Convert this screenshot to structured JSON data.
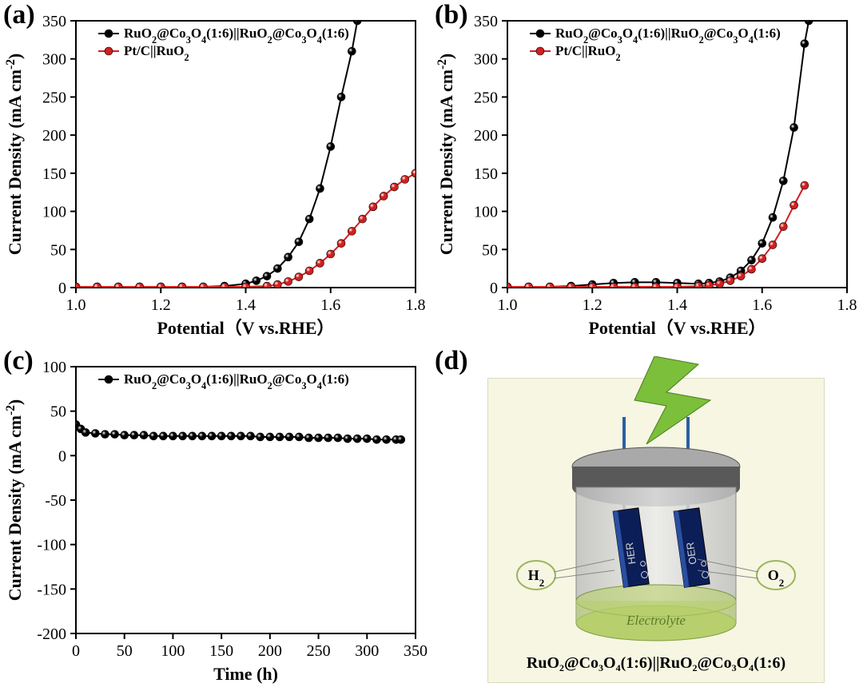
{
  "global": {
    "background_color": "#ffffff",
    "font_family": "Times New Roman",
    "panel_label_fontsize": 34
  },
  "panel_a": {
    "label": "(a)",
    "type": "line-scatter",
    "xlabel": "Potential（V vs.RHE）",
    "ylabel": "Current Density (mA cm⁻²)",
    "label_fontsize": 22,
    "tick_fontsize": 20,
    "xlim": [
      1.0,
      1.8
    ],
    "xtick_step": 0.2,
    "ylim": [
      0,
      350
    ],
    "ytick_step": 50,
    "axis_color": "#000000",
    "background_color": "#ffffff",
    "legend_position": "top-inside",
    "series": [
      {
        "name": "RuO₂@Co₃O₄(1:6)||RuO₂@Co₃O₄(1:6)",
        "line_color": "#000000",
        "marker_fill": "#000000",
        "marker_edge": "#000000",
        "marker_style": "circle",
        "marker_size": 5,
        "x": [
          1.0,
          1.05,
          1.1,
          1.15,
          1.2,
          1.25,
          1.3,
          1.35,
          1.4,
          1.425,
          1.45,
          1.475,
          1.5,
          1.525,
          1.55,
          1.575,
          1.6,
          1.625,
          1.65,
          1.663
        ],
        "y": [
          1,
          1,
          1,
          1,
          1,
          1,
          1,
          2,
          5,
          9,
          15,
          25,
          40,
          60,
          90,
          130,
          185,
          250,
          310,
          350
        ]
      },
      {
        "name": "Pt/C||RuO₂",
        "line_color": "#d21f1f",
        "marker_fill": "#d21f1f",
        "marker_edge": "#000000",
        "marker_style": "circle",
        "marker_size": 5,
        "x": [
          1.0,
          1.05,
          1.1,
          1.15,
          1.2,
          1.25,
          1.3,
          1.35,
          1.4,
          1.45,
          1.475,
          1.5,
          1.525,
          1.55,
          1.575,
          1.6,
          1.625,
          1.65,
          1.675,
          1.7,
          1.725,
          1.75,
          1.775,
          1.8
        ],
        "y": [
          1,
          1,
          1,
          1,
          1,
          1,
          1,
          1,
          1,
          2,
          4,
          8,
          14,
          22,
          32,
          44,
          58,
          74,
          90,
          106,
          120,
          132,
          142,
          150
        ]
      }
    ]
  },
  "panel_b": {
    "label": "(b)",
    "type": "line-scatter",
    "xlabel": "Potential（V vs.RHE）",
    "ylabel": "Current Density (mA cm⁻²)",
    "label_fontsize": 22,
    "tick_fontsize": 20,
    "xlim": [
      1.0,
      1.8
    ],
    "xtick_step": 0.2,
    "ylim": [
      0,
      350
    ],
    "ytick_step": 50,
    "axis_color": "#000000",
    "background_color": "#ffffff",
    "legend_position": "top-inside",
    "series": [
      {
        "name": "RuO₂@Co₃O₄(1:6)||RuO₂@Co₃O₄(1:6)",
        "line_color": "#000000",
        "marker_fill": "#000000",
        "marker_edge": "#000000",
        "marker_style": "circle",
        "marker_size": 5,
        "x": [
          1.0,
          1.05,
          1.1,
          1.15,
          1.2,
          1.25,
          1.3,
          1.35,
          1.4,
          1.45,
          1.475,
          1.5,
          1.525,
          1.55,
          1.575,
          1.6,
          1.625,
          1.65,
          1.675,
          1.7,
          1.71
        ],
        "y": [
          1,
          1,
          1,
          2,
          4,
          6,
          7,
          7,
          6,
          5,
          6,
          8,
          13,
          22,
          36,
          58,
          92,
          140,
          210,
          320,
          350
        ]
      },
      {
        "name": "Pt/C||RuO₂",
        "line_color": "#d21f1f",
        "marker_fill": "#d21f1f",
        "marker_edge": "#000000",
        "marker_style": "circle",
        "marker_size": 5,
        "x": [
          1.0,
          1.05,
          1.1,
          1.15,
          1.2,
          1.25,
          1.3,
          1.35,
          1.4,
          1.45,
          1.475,
          1.5,
          1.525,
          1.55,
          1.575,
          1.6,
          1.625,
          1.65,
          1.675,
          1.7
        ],
        "y": [
          1,
          1,
          1,
          1,
          1,
          1,
          1,
          1,
          1,
          2,
          3,
          5,
          9,
          15,
          24,
          38,
          56,
          80,
          108,
          134
        ]
      }
    ]
  },
  "panel_c": {
    "label": "(c)",
    "type": "line-scatter",
    "xlabel": "Time (h)",
    "ylabel": "Current Density (mA cm⁻²)",
    "label_fontsize": 22,
    "tick_fontsize": 20,
    "xlim": [
      0,
      350
    ],
    "xtick_step": 50,
    "ylim": [
      -200,
      100
    ],
    "ytick_step": 50,
    "axis_color": "#000000",
    "background_color": "#ffffff",
    "legend_position": "top-inside",
    "series": [
      {
        "name": "RuO₂@Co₃O₄(1:6)||RuO₂@Co₃O₄(1:6)",
        "line_color": "#000000",
        "marker_fill": "#000000",
        "marker_edge": "#000000",
        "marker_style": "circle",
        "marker_size": 5,
        "x": [
          0,
          5,
          10,
          20,
          30,
          40,
          50,
          60,
          70,
          80,
          90,
          100,
          110,
          120,
          130,
          140,
          150,
          160,
          170,
          180,
          190,
          200,
          210,
          220,
          230,
          240,
          250,
          260,
          270,
          280,
          290,
          300,
          310,
          320,
          330,
          335
        ],
        "y": [
          35,
          30,
          26,
          25,
          24,
          24,
          23,
          23,
          23,
          22,
          22,
          22,
          22,
          22,
          22,
          22,
          22,
          22,
          22,
          22,
          21,
          21,
          21,
          21,
          21,
          20,
          20,
          20,
          20,
          19,
          19,
          19,
          18,
          18,
          18,
          18
        ]
      }
    ]
  },
  "panel_d": {
    "label": "(d)",
    "type": "infographic",
    "background_color": "#f6f6e3",
    "lightning_color": "#7bbf3a",
    "electrode_line_color": "#2a5fa3",
    "cell_top_color": "#595959",
    "cell_body_color": "#d2d2d2",
    "cell_bottom_color": "#b7cf6d",
    "electrode_color": "#0c1e57",
    "electrolyte_text": "Electrolyte",
    "electrolyte_text_color": "#5a7a2c",
    "her_label": "HER",
    "oer_label": "OER",
    "h2_label": "H₂",
    "o2_label": "O₂",
    "caption": "RuO₂@Co₃O₄(1:6)||RuO₂@Co₃O₄(1:6)",
    "caption_fontsize": 20,
    "bubble_color": "#ffffff",
    "label_circle_stroke": "#9fb55a"
  }
}
